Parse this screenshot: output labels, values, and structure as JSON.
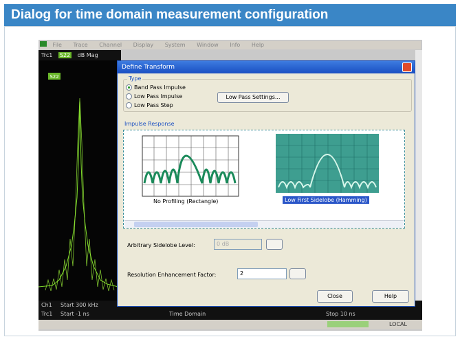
{
  "header": {
    "title": "Dialog for time domain measurement configuration"
  },
  "app": {
    "menu": [
      "File",
      "Trace",
      "Channel",
      "Display",
      "System",
      "Window",
      "Info",
      "Help"
    ],
    "toolbar": {
      "trace": "Trc1",
      "param": "S22",
      "format": "dB Mag"
    },
    "marker": "S22",
    "status": {
      "channel": "Ch1",
      "trace": "Trc1",
      "start_freq": "Start 300 kHz",
      "start_time": "Start -1 ns",
      "domain": "Time Domain",
      "stop": "Stop 10 ns",
      "mode": "LOCAL"
    }
  },
  "dialog": {
    "title": "Define Transform",
    "type_group": {
      "label": "Type",
      "options": [
        "Band Pass Impulse",
        "Low Pass Impulse",
        "Low Pass Step"
      ],
      "button": "Low Pass Settings..."
    },
    "impulse_group": {
      "label": "Impulse Response",
      "windows": [
        "No Profiling (Rectangle)",
        "Low First Sidelobe (Hamming)"
      ]
    },
    "sidelobe": {
      "label": "Arbitrary Sidelobe Level:",
      "value": "0 dB"
    },
    "resolution": {
      "label": "Resolution Enhancement Factor:",
      "value": "2"
    },
    "buttons": [
      "Close",
      "Help"
    ]
  }
}
